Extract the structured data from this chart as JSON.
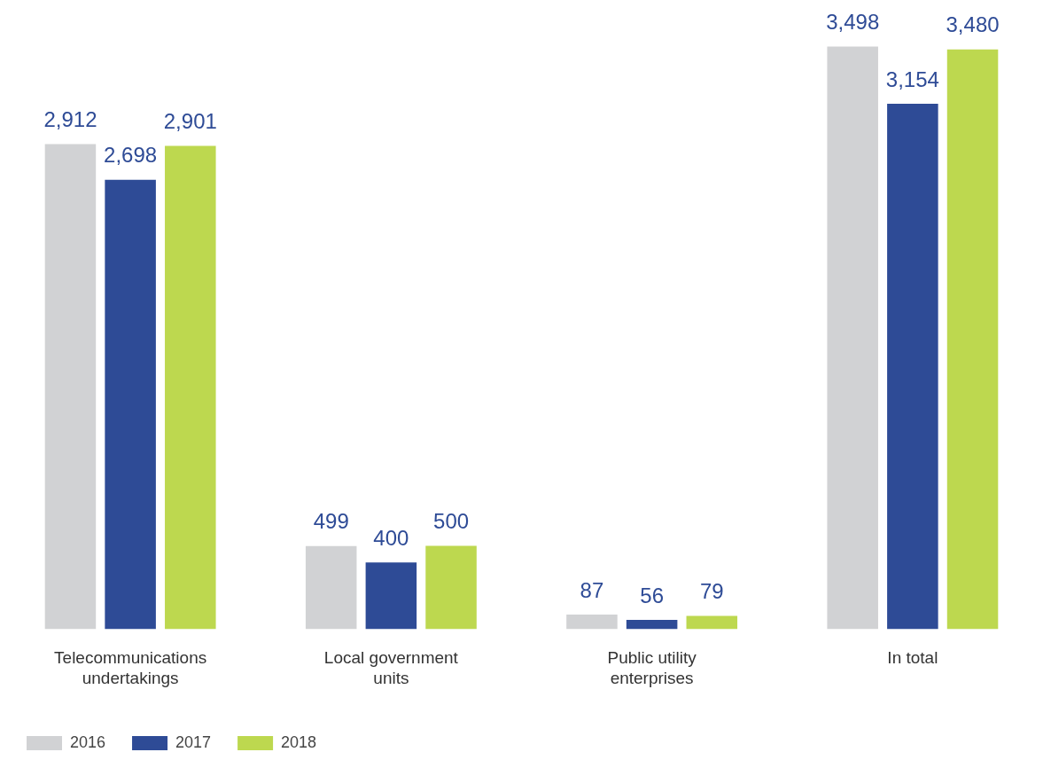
{
  "chart_data": {
    "type": "bar",
    "categories": [
      "Telecommunications undertakings",
      "Local government units",
      "Public utility enterprises",
      "In total"
    ],
    "series": [
      {
        "name": "2016",
        "color": "#d1d2d4",
        "values": [
          2912,
          499,
          87,
          3498
        ],
        "value_labels": [
          "2,912",
          "499",
          "87",
          "3,498"
        ]
      },
      {
        "name": "2017",
        "color": "#2e4b96",
        "values": [
          2698,
          400,
          56,
          3154
        ],
        "value_labels": [
          "2,698",
          "400",
          "56",
          "3,154"
        ]
      },
      {
        "name": "2018",
        "color": "#bdd84f",
        "values": [
          2901,
          500,
          79,
          3480
        ],
        "value_labels": [
          "2,901",
          "500",
          "79",
          "3,480"
        ]
      }
    ],
    "grid": false,
    "legend": "bottom left",
    "tick_labels": "x"
  }
}
